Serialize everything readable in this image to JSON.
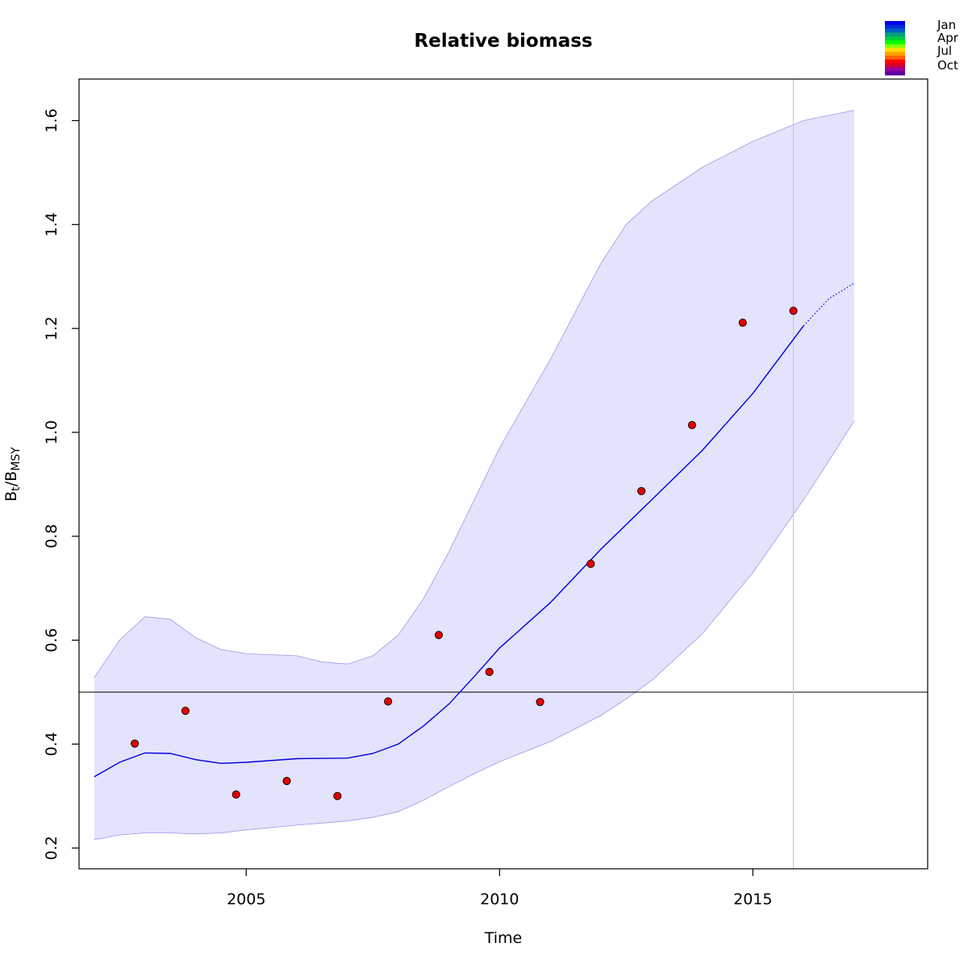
{
  "chart_data": {
    "type": "line",
    "title": "Relative biomass",
    "xlabel": "Time",
    "ylabel": {
      "base": "B",
      "sub1": "t",
      "sep": "/",
      "base2": "B",
      "sub2": "MSY"
    },
    "xlim": [
      2001.7,
      2018.45
    ],
    "ylim": [
      0.16,
      1.68
    ],
    "x_ticks": [
      2005,
      2010,
      2015
    ],
    "y_ticks": [
      0.2,
      0.4,
      0.6,
      0.8,
      1.0,
      1.2,
      1.4,
      1.6
    ],
    "y_tick_labels": [
      "0.2",
      "0.4",
      "0.6",
      "0.8",
      "1.0",
      "1.2",
      "1.4",
      "1.6"
    ],
    "reference_line_y": 0.5,
    "vertical_line_x": 2015.8,
    "series": [
      {
        "kind": "estimate",
        "color": "#0000dd",
        "x": [
          2002.0,
          2002.5,
          2003.0,
          2003.5,
          2004.0,
          2004.5,
          2005.0,
          2006.0,
          2007.0,
          2007.5,
          2008.0,
          2008.5,
          2009.0,
          2009.5,
          2010.0,
          2011.0,
          2012.0,
          2013.0,
          2014.0,
          2015.0,
          2016.0
        ],
        "y": [
          0.337,
          0.365,
          0.383,
          0.382,
          0.37,
          0.363,
          0.365,
          0.372,
          0.373,
          0.382,
          0.4,
          0.435,
          0.477,
          0.53,
          0.585,
          0.672,
          0.775,
          0.87,
          0.965,
          1.075,
          1.205
        ]
      },
      {
        "kind": "prediction",
        "color": "#0000dd",
        "dotted": true,
        "x": [
          2016.0,
          2016.5,
          2017.0
        ],
        "y": [
          1.205,
          1.257,
          1.287
        ]
      }
    ],
    "confidence_band": {
      "fill": "#e3e3fc",
      "stroke": "#9a9ae8",
      "x": [
        2002.0,
        2002.5,
        2003.0,
        2003.5,
        2004.0,
        2004.5,
        2005.0,
        2006.0,
        2006.5,
        2007.0,
        2007.5,
        2008.0,
        2008.5,
        2009.0,
        2009.5,
        2010.0,
        2011.0,
        2012.0,
        2012.5,
        2013.0,
        2014.0,
        2015.0,
        2016.0,
        2016.5,
        2017.0
      ],
      "upper": [
        0.528,
        0.6,
        0.645,
        0.64,
        0.605,
        0.582,
        0.574,
        0.57,
        0.558,
        0.554,
        0.57,
        0.61,
        0.68,
        0.77,
        0.87,
        0.97,
        1.14,
        1.325,
        1.4,
        1.445,
        1.51,
        1.56,
        1.6,
        1.61,
        1.62
      ],
      "lower": [
        0.216,
        0.225,
        0.229,
        0.229,
        0.227,
        0.229,
        0.235,
        0.244,
        0.248,
        0.252,
        0.259,
        0.27,
        0.292,
        0.318,
        0.343,
        0.366,
        0.405,
        0.455,
        0.487,
        0.522,
        0.612,
        0.73,
        0.87,
        0.945,
        1.022
      ]
    },
    "observations": {
      "fill": "#e30000",
      "stroke": "#000000",
      "x": [
        2002.8,
        2003.8,
        2004.8,
        2005.8,
        2006.8,
        2007.8,
        2008.8,
        2009.8,
        2010.8,
        2011.8,
        2012.8,
        2013.8,
        2014.8,
        2015.8
      ],
      "y": [
        0.401,
        0.464,
        0.303,
        0.329,
        0.3,
        0.482,
        0.61,
        0.539,
        0.481,
        0.747,
        0.887,
        1.014,
        1.211,
        1.234
      ]
    },
    "legend": {
      "placement": "top-right",
      "labels": [
        "Jan",
        "Apr",
        "Jul",
        "Oct"
      ],
      "colors": [
        "#0000e8",
        "#0030d8",
        "#0060c0",
        "#00a080",
        "#00c840",
        "#00ff00",
        "#80ff00",
        "#ffe000",
        "#ffa000",
        "#ff6000",
        "#ff0000",
        "#d80030",
        "#9800a0",
        "#6000a0"
      ]
    }
  }
}
